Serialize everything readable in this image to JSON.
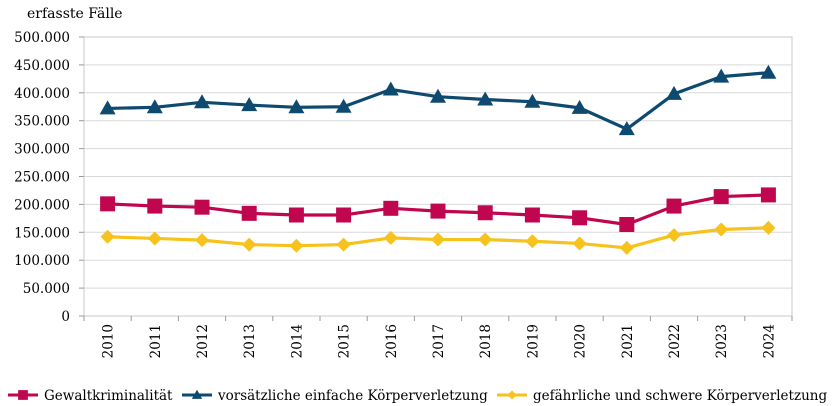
{
  "chart_data": {
    "type": "line",
    "ylabel": "erfasste Fälle",
    "categories": [
      "2010",
      "2011",
      "2012",
      "2013",
      "2014",
      "2015",
      "2016",
      "2017",
      "2018",
      "2019",
      "2020",
      "2021",
      "2022",
      "2023",
      "2024"
    ],
    "ylim": [
      0,
      500000
    ],
    "ytick_labels": [
      "0",
      "50.000",
      "100.000",
      "150.000",
      "200.000",
      "250.000",
      "300.000",
      "350.000",
      "400.000",
      "450.000",
      "500.000"
    ],
    "grid": "horizontal",
    "legend_position": "bottom",
    "series": [
      {
        "name": "Gewaltkriminalität",
        "color": "#c0064f",
        "marker": "square",
        "values": [
          201000,
          197000,
          195000,
          184000,
          181000,
          181000,
          193000,
          188000,
          185000,
          181000,
          176000,
          164000,
          197000,
          214000,
          217000
        ]
      },
      {
        "name": "vorsätzliche einfache Körperverletzung",
        "color": "#0e4a6f",
        "marker": "triangle",
        "values": [
          372000,
          374000,
          383000,
          378000,
          374000,
          375000,
          406000,
          393000,
          388000,
          384000,
          373000,
          335000,
          398000,
          429000,
          436000
        ]
      },
      {
        "name": "gefährliche und schwere Körperverletzung",
        "color": "#f6c21b",
        "marker": "diamond",
        "values": [
          142000,
          139000,
          136000,
          128000,
          126000,
          128000,
          140000,
          137000,
          137000,
          134000,
          130000,
          122000,
          145000,
          155000,
          158000
        ]
      }
    ]
  }
}
